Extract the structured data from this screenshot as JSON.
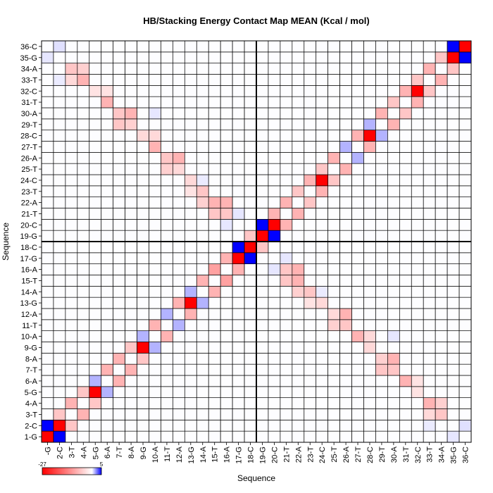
{
  "chart_data": {
    "type": "heatmap",
    "title": "HB/Stacking Energy Contact Map MEAN (Kcal / mol)",
    "xlabel": "Sequence",
    "ylabel": "Sequence",
    "residues": [
      "1-G",
      "2-C",
      "3-T",
      "4-A",
      "5-G",
      "6-A",
      "7-T",
      "8-A",
      "9-G",
      "10-A",
      "11-T",
      "12-A",
      "13-G",
      "14-A",
      "15-T",
      "16-A",
      "17-G",
      "18-C",
      "19-G",
      "20-C",
      "21-T",
      "22-A",
      "23-T",
      "24-C",
      "25-T",
      "26-A",
      "27-T",
      "28-C",
      "29-T",
      "30-A",
      "31-T",
      "32-C",
      "33-T",
      "34-A",
      "35-G",
      "36-C"
    ],
    "x_tick_labels": [
      "-G",
      "2-C",
      "3-T",
      "4-A",
      "5-G",
      "6-A",
      "7-T",
      "8-A",
      "9-G",
      "10-A",
      "11-T",
      "12-A",
      "13-G",
      "14-A",
      "15-T",
      "16-A",
      "17-G",
      "18-C",
      "19-G",
      "20-C",
      "21-T",
      "22-A",
      "23-T",
      "24-C",
      "25-T",
      "26-A",
      "27-T",
      "28-C",
      "29-T",
      "30-A",
      "31-T",
      "32-C",
      "33-T",
      "34-A",
      "35-G",
      "36-C"
    ],
    "colorbar": {
      "min": -27,
      "max": 5,
      "min_label": "-27",
      "max_label": "5",
      "colors": [
        "#ff0000",
        "#ffffff",
        "#0000ff"
      ]
    },
    "divider_after_index": 18,
    "default_value": 0.03,
    "cells": [
      [
        1,
        1,
        -27
      ],
      [
        2,
        2,
        -27
      ],
      [
        1,
        2,
        5
      ],
      [
        2,
        1,
        5
      ],
      [
        35,
        35,
        -27
      ],
      [
        36,
        36,
        -27
      ],
      [
        35,
        36,
        5
      ],
      [
        36,
        35,
        5
      ],
      [
        19,
        19,
        -27
      ],
      [
        20,
        20,
        -27
      ],
      [
        19,
        20,
        5
      ],
      [
        20,
        19,
        5
      ],
      [
        17,
        17,
        -27
      ],
      [
        18,
        18,
        -27
      ],
      [
        17,
        18,
        5
      ],
      [
        18,
        17,
        5
      ],
      [
        5,
        5,
        -27
      ],
      [
        32,
        32,
        -27
      ],
      [
        9,
        9,
        -27
      ],
      [
        28,
        28,
        -27
      ],
      [
        13,
        13,
        -27
      ],
      [
        24,
        24,
        -27
      ],
      [
        3,
        4,
        -8
      ],
      [
        4,
        3,
        -8
      ],
      [
        6,
        7,
        -8
      ],
      [
        7,
        6,
        -8
      ],
      [
        7,
        8,
        -8
      ],
      [
        8,
        7,
        -8
      ],
      [
        10,
        11,
        -8
      ],
      [
        11,
        10,
        -8
      ],
      [
        12,
        13,
        -8
      ],
      [
        13,
        12,
        -8
      ],
      [
        14,
        15,
        -8
      ],
      [
        15,
        14,
        -8
      ],
      [
        15,
        16,
        -10
      ],
      [
        16,
        15,
        -10
      ],
      [
        16,
        17,
        -8
      ],
      [
        17,
        16,
        -8
      ],
      [
        20,
        21,
        -8
      ],
      [
        21,
        20,
        -8
      ],
      [
        21,
        22,
        -8
      ],
      [
        22,
        21,
        -8
      ],
      [
        23,
        24,
        -8
      ],
      [
        24,
        23,
        -8
      ],
      [
        25,
        26,
        -8
      ],
      [
        26,
        25,
        -8
      ],
      [
        27,
        28,
        -8
      ],
      [
        28,
        27,
        -8
      ],
      [
        29,
        30,
        -8
      ],
      [
        30,
        29,
        -8
      ],
      [
        31,
        32,
        -8
      ],
      [
        32,
        31,
        -8
      ],
      [
        33,
        34,
        -8
      ],
      [
        34,
        33,
        -8
      ],
      [
        2,
        3,
        -6
      ],
      [
        3,
        2,
        -6
      ],
      [
        4,
        5,
        -6
      ],
      [
        5,
        4,
        -6
      ],
      [
        5,
        6,
        1.5
      ],
      [
        6,
        5,
        1.5
      ],
      [
        8,
        9,
        -6
      ],
      [
        9,
        8,
        -6
      ],
      [
        9,
        10,
        1.5
      ],
      [
        10,
        9,
        1.5
      ],
      [
        11,
        12,
        1.5
      ],
      [
        12,
        11,
        1.5
      ],
      [
        13,
        14,
        1.5
      ],
      [
        14,
        13,
        1.5
      ],
      [
        18,
        19,
        -6
      ],
      [
        19,
        18,
        -6
      ],
      [
        22,
        23,
        -6
      ],
      [
        23,
        22,
        -6
      ],
      [
        24,
        25,
        -6
      ],
      [
        25,
        24,
        -6
      ],
      [
        26,
        27,
        1.5
      ],
      [
        27,
        26,
        1.5
      ],
      [
        28,
        29,
        1.5
      ],
      [
        29,
        28,
        1.5
      ],
      [
        30,
        31,
        -6
      ],
      [
        31,
        30,
        -6
      ],
      [
        32,
        33,
        -6
      ],
      [
        33,
        32,
        -6
      ],
      [
        34,
        35,
        -6
      ],
      [
        35,
        34,
        -6
      ],
      [
        3,
        34,
        -6
      ],
      [
        34,
        3,
        -6
      ],
      [
        3,
        33,
        -4
      ],
      [
        33,
        3,
        -4
      ],
      [
        4,
        34,
        -5
      ],
      [
        34,
        4,
        -5
      ],
      [
        4,
        33,
        -8
      ],
      [
        33,
        4,
        -8
      ],
      [
        6,
        31,
        -8
      ],
      [
        31,
        6,
        -8
      ],
      [
        7,
        30,
        -6
      ],
      [
        30,
        7,
        -6
      ],
      [
        7,
        29,
        -6
      ],
      [
        29,
        7,
        -6
      ],
      [
        8,
        30,
        -8
      ],
      [
        30,
        8,
        -8
      ],
      [
        8,
        29,
        -5
      ],
      [
        29,
        8,
        -5
      ],
      [
        10,
        27,
        -8
      ],
      [
        27,
        10,
        -8
      ],
      [
        11,
        26,
        -6
      ],
      [
        26,
        11,
        -6
      ],
      [
        11,
        25,
        -5
      ],
      [
        25,
        11,
        -5
      ],
      [
        12,
        26,
        -8
      ],
      [
        26,
        12,
        -8
      ],
      [
        12,
        25,
        -4
      ],
      [
        25,
        12,
        -4
      ],
      [
        14,
        23,
        -6
      ],
      [
        23,
        14,
        -6
      ],
      [
        14,
        22,
        -5
      ],
      [
        22,
        14,
        -5
      ],
      [
        15,
        22,
        -8
      ],
      [
        22,
        15,
        -8
      ],
      [
        15,
        21,
        -6
      ],
      [
        21,
        15,
        -6
      ],
      [
        16,
        22,
        -8
      ],
      [
        22,
        16,
        -8
      ],
      [
        16,
        21,
        -6
      ],
      [
        21,
        16,
        -6
      ],
      [
        5,
        32,
        -3
      ],
      [
        32,
        5,
        -3
      ],
      [
        6,
        32,
        -3
      ],
      [
        32,
        6,
        -3
      ],
      [
        9,
        28,
        -4
      ],
      [
        28,
        9,
        -4
      ],
      [
        10,
        28,
        -4
      ],
      [
        28,
        10,
        -4
      ],
      [
        13,
        24,
        -4
      ],
      [
        24,
        13,
        -4
      ],
      [
        13,
        23,
        -3
      ],
      [
        23,
        13,
        -3
      ],
      [
        2,
        36,
        0.6
      ],
      [
        36,
        2,
        0.6
      ],
      [
        1,
        35,
        0.5
      ],
      [
        35,
        1,
        0.5
      ],
      [
        10,
        30,
        0.5
      ],
      [
        30,
        10,
        0.5
      ],
      [
        14,
        24,
        0.4
      ],
      [
        24,
        14,
        0.4
      ],
      [
        16,
        20,
        0.5
      ],
      [
        20,
        16,
        0.5
      ],
      [
        17,
        21,
        0.5
      ],
      [
        21,
        17,
        0.5
      ],
      [
        2,
        33,
        0.4
      ],
      [
        33,
        2,
        0.4
      ]
    ]
  }
}
